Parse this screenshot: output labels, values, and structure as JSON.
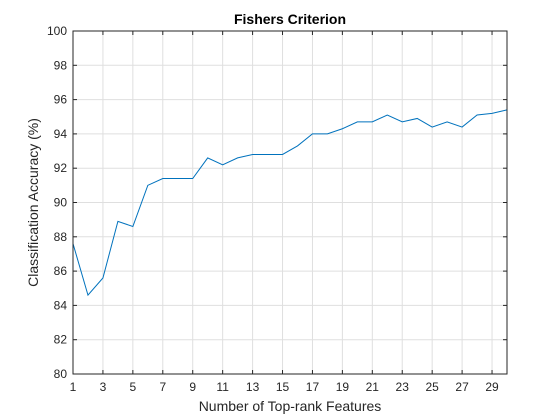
{
  "chart_data": {
    "type": "line",
    "title": "Fishers Criterion",
    "xlabel": "Number of Top-rank Features",
    "ylabel": "Classification Accuracy (%)",
    "xlim": [
      1,
      30
    ],
    "ylim": [
      80,
      100
    ],
    "xticks": [
      1,
      3,
      5,
      7,
      9,
      11,
      13,
      15,
      17,
      19,
      21,
      23,
      25,
      27,
      29
    ],
    "yticks": [
      80,
      82,
      84,
      86,
      88,
      90,
      92,
      94,
      96,
      98,
      100
    ],
    "grid": true,
    "series": [
      {
        "color": "#0072BD",
        "x": [
          1,
          2,
          3,
          4,
          5,
          6,
          7,
          8,
          9,
          10,
          11,
          12,
          13,
          14,
          15,
          16,
          17,
          18,
          19,
          20,
          21,
          22,
          23,
          24,
          25,
          26,
          27,
          28,
          29,
          30
        ],
        "y": [
          87.6,
          84.6,
          85.6,
          88.9,
          88.6,
          91.0,
          91.4,
          91.4,
          91.4,
          92.6,
          92.2,
          92.6,
          92.8,
          92.8,
          92.8,
          93.3,
          94.0,
          94.0,
          94.3,
          94.7,
          94.7,
          95.1,
          94.7,
          94.9,
          94.4,
          94.7,
          94.4,
          95.1,
          95.2,
          95.4
        ]
      }
    ]
  }
}
